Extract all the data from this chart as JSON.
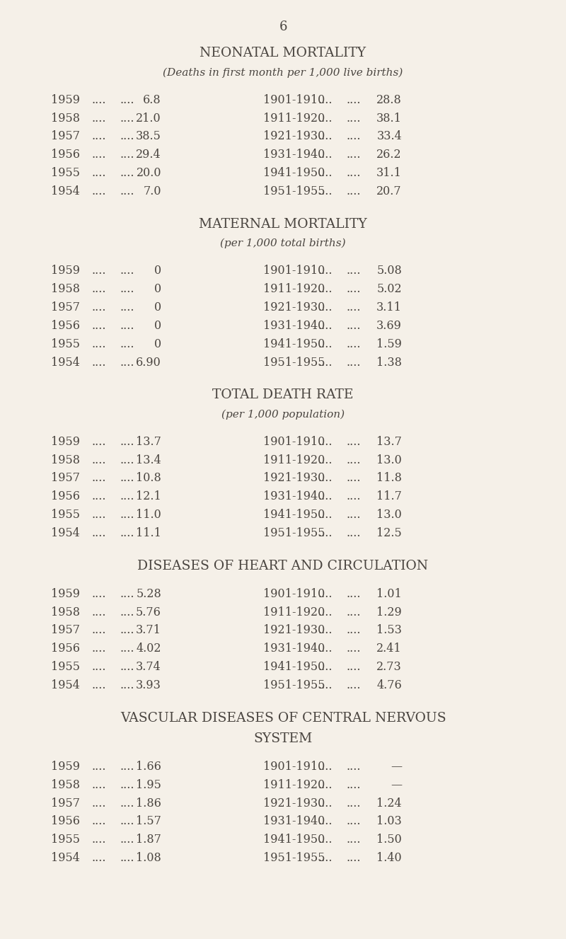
{
  "page_number": "6",
  "bg_color": "#f5f0e8",
  "text_color": "#4a4540",
  "sections": [
    {
      "title": "NEONATAL MORTALITY",
      "subtitle": "(Deaths in first month per 1,000 live births)",
      "left_col": [
        [
          "1959",
          "....",
          "....",
          "6.8"
        ],
        [
          "1958",
          "....",
          "....",
          "21.0"
        ],
        [
          "1957",
          "....",
          "....",
          "38.5"
        ],
        [
          "1956",
          "....",
          "....",
          "29.4"
        ],
        [
          "1955",
          "....",
          "....",
          "20.0"
        ],
        [
          "1954",
          "....",
          "....",
          "7.0"
        ]
      ],
      "right_col": [
        [
          "1901-1910",
          "....",
          "....",
          "28.8"
        ],
        [
          "1911-1920",
          "....",
          "....",
          "38.1"
        ],
        [
          "1921-1930",
          "....",
          "....",
          "33.4"
        ],
        [
          "1931-1940",
          "....",
          "....",
          "26.2"
        ],
        [
          "1941-1950",
          "....",
          "....",
          "31.1"
        ],
        [
          "1951-1955",
          "....",
          "....",
          "20.7"
        ]
      ]
    },
    {
      "title": "MATERNAL MORTALITY",
      "subtitle": "(per 1,000 total births)",
      "left_col": [
        [
          "1959",
          "....",
          "....",
          "0"
        ],
        [
          "1958",
          "....",
          "....",
          "0"
        ],
        [
          "1957",
          "....",
          "....",
          "0"
        ],
        [
          "1956",
          "....",
          "....",
          "0"
        ],
        [
          "1955",
          "....",
          "....",
          "0"
        ],
        [
          "1954",
          "....",
          "....",
          "6.90"
        ]
      ],
      "right_col": [
        [
          "1901-1910",
          "....",
          "....",
          "5.08"
        ],
        [
          "1911-1920",
          "....",
          "....",
          "5.02"
        ],
        [
          "1921-1930",
          "....",
          "....",
          "3.11"
        ],
        [
          "1931-1940",
          "....",
          "....",
          "3.69"
        ],
        [
          "1941-1950",
          "....",
          "....",
          "1.59"
        ],
        [
          "1951-1955",
          "....",
          "....",
          "1.38"
        ]
      ]
    },
    {
      "title": "TOTAL DEATH RATE",
      "subtitle": "(per 1,000 population)",
      "left_col": [
        [
          "1959",
          "....",
          "....",
          "13.7"
        ],
        [
          "1958",
          "....",
          "....",
          "13.4"
        ],
        [
          "1957",
          "....",
          "....",
          "10.8"
        ],
        [
          "1956",
          "....",
          "....",
          "12.1"
        ],
        [
          "1955",
          "....",
          "....",
          "11.0"
        ],
        [
          "1954",
          "....",
          "....",
          "11.1"
        ]
      ],
      "right_col": [
        [
          "1901-1910",
          "....",
          "....",
          "13.7"
        ],
        [
          "1911-1920",
          "....",
          "....",
          "13.0"
        ],
        [
          "1921-1930",
          "....",
          "....",
          "11.8"
        ],
        [
          "1931-1940",
          "....",
          "....",
          "11.7"
        ],
        [
          "1941-1950",
          "....",
          "....",
          "13.0"
        ],
        [
          "1951-1955",
          "....",
          "....",
          "12.5"
        ]
      ]
    },
    {
      "title": "DISEASES OF HEART AND CIRCULATION",
      "subtitle": null,
      "left_col": [
        [
          "1959",
          "....",
          "....",
          "5.28"
        ],
        [
          "1958",
          "....",
          "....",
          "5.76"
        ],
        [
          "1957",
          "....",
          "....",
          "3.71"
        ],
        [
          "1956",
          "....",
          "....",
          "4.02"
        ],
        [
          "1955",
          "....",
          "....",
          "3.74"
        ],
        [
          "1954",
          "....",
          "....",
          "3.93"
        ]
      ],
      "right_col": [
        [
          "1901-1910",
          "....",
          "....",
          "1.01"
        ],
        [
          "1911-1920",
          "....",
          "....",
          "1.29"
        ],
        [
          "1921-1930",
          "....",
          "....",
          "1.53"
        ],
        [
          "1931-1940",
          "....",
          "....",
          "2.41"
        ],
        [
          "1941-1950",
          "....",
          "....",
          "2.73"
        ],
        [
          "1951-1955",
          "....",
          "....",
          "4.76"
        ]
      ]
    },
    {
      "title": "VASCULAR DISEASES OF CENTRAL NERVOUS\nSYSTEM",
      "subtitle": null,
      "left_col": [
        [
          "1959",
          "....",
          "....",
          "1.66"
        ],
        [
          "1958",
          "....",
          "....",
          "1.95"
        ],
        [
          "1957",
          "....",
          "....",
          "1.86"
        ],
        [
          "1956",
          "....",
          "....",
          "1.57"
        ],
        [
          "1955",
          "....",
          "....",
          "1.87"
        ],
        [
          "1954",
          "....",
          "....",
          "1.08"
        ]
      ],
      "right_col": [
        [
          "1901-1910",
          "....",
          "....",
          "—"
        ],
        [
          "1911-1920",
          "....",
          "....",
          "—"
        ],
        [
          "1921-1930",
          "....",
          "....",
          "1.24"
        ],
        [
          "1931-1940",
          "....",
          "....",
          "1.03"
        ],
        [
          "1941-1950",
          "....",
          "....",
          "1.50"
        ],
        [
          "1951-1955",
          "....",
          "....",
          "1.40"
        ]
      ]
    }
  ]
}
